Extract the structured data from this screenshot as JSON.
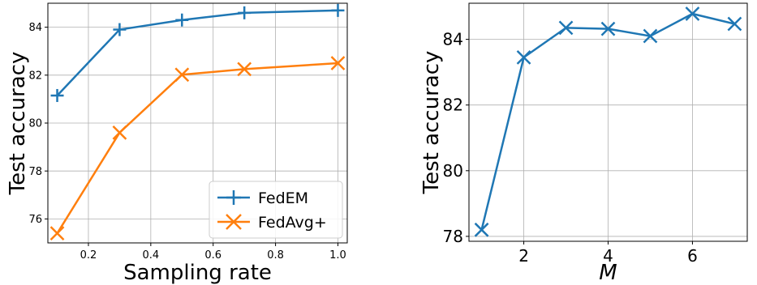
{
  "chart_data": [
    {
      "type": "line",
      "xlabel": "Sampling rate",
      "ylabel": "Test accuracy",
      "xlim": [
        0.07,
        1.03
      ],
      "ylim": [
        75.0,
        85.0
      ],
      "xticks": [
        0.2,
        0.4,
        0.6,
        0.8,
        1.0
      ],
      "xtick_labels": [
        "0.2",
        "0.4",
        "0.6",
        "0.8",
        "1.0"
      ],
      "yticks": [
        76,
        78,
        80,
        82,
        84
      ],
      "ytick_labels": [
        "76",
        "78",
        "80",
        "82",
        "84"
      ],
      "grid": true,
      "legend_position": "bottom-right",
      "series": [
        {
          "name": "FedEM",
          "color": "#1f77b4",
          "marker": "plus",
          "x": [
            0.1,
            0.3,
            0.5,
            0.7,
            1.0
          ],
          "y": [
            81.15,
            83.9,
            84.3,
            84.6,
            84.7
          ]
        },
        {
          "name": "FedAvg+",
          "color": "#ff7f0e",
          "marker": "x",
          "x": [
            0.1,
            0.3,
            0.5,
            0.7,
            1.0
          ],
          "y": [
            75.4,
            79.6,
            82.02,
            82.25,
            82.5
          ]
        }
      ]
    },
    {
      "type": "line",
      "xlabel": "M",
      "ylabel": "Test accuracy",
      "xlim": [
        0.7,
        7.3
      ],
      "ylim": [
        77.85,
        85.1
      ],
      "xticks": [
        2,
        4,
        6
      ],
      "xtick_labels": [
        "2",
        "4",
        "6"
      ],
      "yticks": [
        78,
        80,
        82,
        84
      ],
      "ytick_labels": [
        "78",
        "80",
        "82",
        "84"
      ],
      "grid": true,
      "series": [
        {
          "color": "#1f77b4",
          "marker": "x",
          "x": [
            1,
            2,
            3,
            4,
            5,
            6,
            7
          ],
          "y": [
            78.2,
            83.45,
            84.35,
            84.32,
            84.1,
            84.78,
            84.47
          ]
        }
      ]
    }
  ]
}
